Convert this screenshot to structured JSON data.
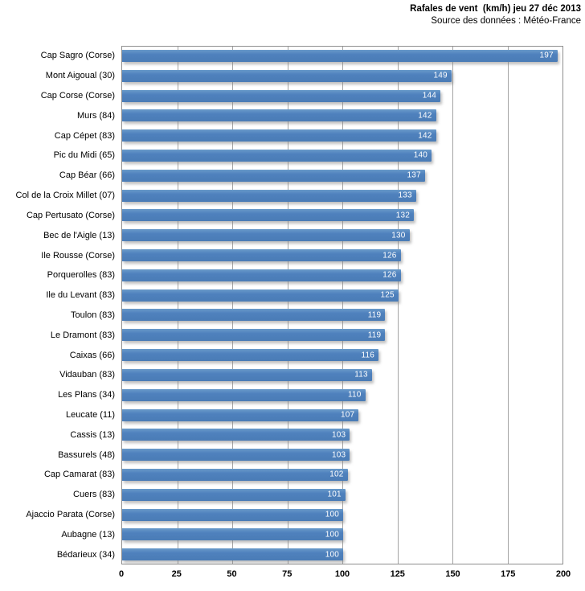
{
  "header": {
    "title": "Rafales de vent  (km/h) jeu 27 déc 2013",
    "subtitle": "Source des données : Météo-France"
  },
  "colors": {
    "bar": "#4f81bd",
    "gridline": "#a4a4a4",
    "plot_border": "#8e8e8e",
    "value_label": "#ffffff",
    "text": "#000000"
  },
  "chart_data": {
    "type": "bar",
    "orientation": "horizontal",
    "title": "Rafales de vent  (km/h) jeu 27 déc 2013",
    "subtitle": "Source des données : Météo-France",
    "xlabel": "",
    "ylabel": "",
    "xlim": [
      0,
      200
    ],
    "xticks": [
      0,
      25,
      50,
      75,
      100,
      125,
      150,
      175,
      200
    ],
    "grid": true,
    "value_labels": "inside-end",
    "legend": "none",
    "categories": [
      "Cap Sagro (Corse)",
      "Mont Aigoual (30)",
      "Cap Corse (Corse)",
      "Murs (84)",
      "Cap Cépet (83)",
      "Pic du Midi (65)",
      "Cap Béar (66)",
      "Col de la Croix Millet (07)",
      "Cap Pertusato (Corse)",
      "Bec de l'Aigle (13)",
      "Ile Rousse (Corse)",
      "Porquerolles (83)",
      "Ile du Levant (83)",
      "Toulon (83)",
      "Le Dramont (83)",
      "Caixas (66)",
      "Vidauban (83)",
      "Les Plans (34)",
      "Leucate (11)",
      "Cassis (13)",
      "Bassurels (48)",
      "Cap Camarat (83)",
      "Cuers (83)",
      "Ajaccio Parata (Corse)",
      "Aubagne (13)",
      "Bédarieux (34)"
    ],
    "values": [
      197,
      149,
      144,
      142,
      142,
      140,
      137,
      133,
      132,
      130,
      126,
      126,
      125,
      119,
      119,
      116,
      113,
      110,
      107,
      103,
      103,
      102,
      101,
      100,
      100,
      100
    ]
  }
}
